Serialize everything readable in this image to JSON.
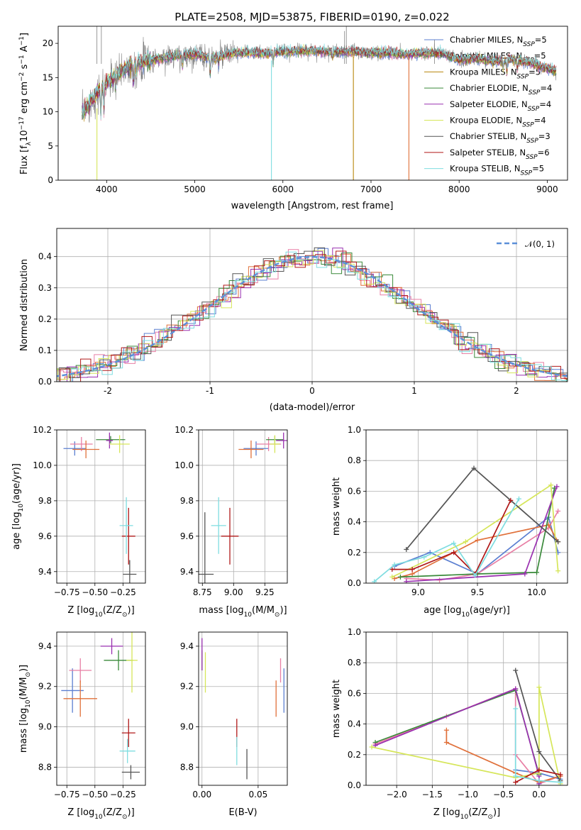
{
  "title": "PLATE=2508, MJD=53875, FIBERID=0190, z=0.022",
  "chart_data": [
    {
      "id": "spectrum",
      "type": "line",
      "xlabel": "wavelength [Angstrom, rest frame]",
      "ylabel": "Flux [f",
      "ylabel_sub": "λ",
      "ylabel_rest": "10",
      "ylabel_exp1": "−17",
      "ylabel_mid": " erg cm",
      "ylabel_exp2": "−2",
      "ylabel_mid2": " s",
      "ylabel_exp3": "−1",
      "ylabel_end": " A",
      "ylabel_exp4": "−1",
      "ylabel_close": "]",
      "xlim": [
        3450,
        9230
      ],
      "ylim": [
        0,
        22.5
      ],
      "xticks": [
        4000,
        5000,
        6000,
        7000,
        8000,
        9000
      ],
      "yticks": [
        0,
        5,
        10,
        15,
        20
      ],
      "grid": false,
      "legend_position": "top-right",
      "continuum": {
        "x": [
          3720,
          3800,
          3900,
          4000,
          4100,
          4200,
          4300,
          4400,
          4500,
          4700,
          5000,
          5200,
          5400,
          5600,
          5800,
          6000,
          6200,
          6400,
          6600,
          6800,
          7000,
          7200,
          7400,
          7600,
          7800,
          8000,
          8200,
          8400,
          8600,
          8800,
          9000,
          9100
        ],
        "y": [
          9.5,
          11.2,
          12.8,
          14.2,
          15.2,
          16.3,
          16.8,
          17.3,
          17.6,
          18.0,
          18.4,
          17.8,
          18.5,
          18.7,
          18.6,
          18.8,
          18.9,
          18.9,
          18.7,
          18.8,
          18.6,
          18.6,
          18.4,
          18.6,
          18.6,
          17.5,
          17.8,
          17.3,
          17.6,
          17.2,
          16.3,
          16.0
        ]
      },
      "absorption_features": [
        {
          "x": 3934,
          "depth": 4.5
        },
        {
          "x": 3969,
          "depth": 4.0
        },
        {
          "x": 4102,
          "depth": 2.0
        },
        {
          "x": 4304,
          "depth": 3.0
        },
        {
          "x": 4340,
          "depth": 2.0
        },
        {
          "x": 4861,
          "depth": 1.8
        },
        {
          "x": 5175,
          "depth": 2.5
        },
        {
          "x": 5270,
          "depth": 1.2
        },
        {
          "x": 5890,
          "depth": 2.0
        },
        {
          "x": 6563,
          "depth": 1.0
        },
        {
          "x": 8500,
          "depth": 1.5
        },
        {
          "x": 8542,
          "depth": 1.8
        },
        {
          "x": 8662,
          "depth": 1.5
        }
      ],
      "dropouts": [
        {
          "x": 3890,
          "y0": 10.5,
          "color": "#d6e65a"
        },
        {
          "x": 5870,
          "y0": 17.5,
          "color": "#7fdde0"
        },
        {
          "x": 6800,
          "y0": 18.0,
          "color": "#b8860b"
        },
        {
          "x": 7430,
          "y0": 18.0,
          "color": "#e0703a"
        }
      ],
      "spikes": [
        {
          "x": 3890,
          "y": 22.5
        },
        {
          "x": 3940,
          "y": 22.5
        },
        {
          "x": 6720,
          "y": 22.5
        },
        {
          "x": 6700,
          "y": 21.8
        },
        {
          "x": 7720,
          "y": 20.5
        }
      ],
      "series": [
        {
          "name": "Chabrier MILES, N",
          "sub": "SSP",
          "count": "=5",
          "color": "#5b7fd1"
        },
        {
          "name": "Salpeter MILES, N",
          "sub": "SSP",
          "count": "=5",
          "color": "#e87fa5"
        },
        {
          "name": "Kroupa MILES, N",
          "sub": "SSP",
          "count": "=5",
          "color": "#b8860b"
        },
        {
          "name": "Chabrier ELODIE, N",
          "sub": "SSP",
          "count": "=4",
          "color": "#3a8a3a"
        },
        {
          "name": "Salpeter ELODIE, N",
          "sub": "SSP",
          "count": "=4",
          "color": "#9a30b0"
        },
        {
          "name": "Kroupa ELODIE, N",
          "sub": "SSP",
          "count": "=4",
          "color": "#d6e65a"
        },
        {
          "name": "Chabrier STELIB, N",
          "sub": "SSP",
          "count": "=3",
          "color": "#555555"
        },
        {
          "name": "Salpeter STELIB, N",
          "sub": "SSP",
          "count": "=6",
          "color": "#b01818"
        },
        {
          "name": "Kroupa STELIB, N",
          "sub": "SSP",
          "count": "=5",
          "color": "#7fdde0"
        }
      ]
    },
    {
      "id": "residuals",
      "type": "histogram",
      "xlabel": "(data-model)/error",
      "ylabel": "Normed distribution",
      "xlim": [
        -2.5,
        2.5
      ],
      "ylim": [
        0,
        0.49
      ],
      "xticks": [
        -2,
        -1,
        0,
        1,
        2
      ],
      "yticks": [
        0.0,
        0.1,
        0.2,
        0.3,
        0.4
      ],
      "grid": true,
      "bin_width": 0.1,
      "reference": {
        "name": "𝒩(0, 1)",
        "color": "#5b8fd8",
        "style": "dashed"
      },
      "legend_position": "top-right",
      "colors": [
        "#5b7fd1",
        "#e87fa5",
        "#e0703a",
        "#3a8a3a",
        "#9a30b0",
        "#d6e65a",
        "#555555",
        "#b01818",
        "#7fdde0"
      ]
    },
    {
      "id": "age-vs-Z",
      "type": "scatter",
      "xlabel": "Z [log",
      "xlabel_sub": "10",
      "xlabel_rest": "(Z/Z",
      "xlabel_sub2": "⊙",
      "xlabel_close": ")]",
      "ylabel": "age  [log",
      "ylabel_sub": "10",
      "ylabel_rest": "(age/yr)]",
      "xlim": [
        -0.84,
        -0.05
      ],
      "ylim": [
        9.335,
        10.2
      ],
      "xticks": [
        -0.75,
        -0.5,
        -0.25
      ],
      "xtick_labels": [
        "−0.75",
        "−0.50",
        "−0.25"
      ],
      "yticks": [
        9.4,
        9.6,
        9.8,
        10.0,
        10.2
      ],
      "grid": true,
      "points": [
        {
          "x": -0.68,
          "y": 10.095,
          "xerr": 0.1,
          "yerr": 0.04,
          "color": "#5b7fd1"
        },
        {
          "x": -0.62,
          "y": 10.12,
          "xerr": 0.1,
          "yerr": 0.04,
          "color": "#e87fa5"
        },
        {
          "x": -0.58,
          "y": 10.09,
          "xerr": 0.12,
          "yerr": 0.05,
          "color": "#e0703a"
        },
        {
          "x": -0.36,
          "y": 10.145,
          "xerr": 0.13,
          "yerr": 0.02,
          "color": "#3a8a3a"
        },
        {
          "x": -0.37,
          "y": 10.14,
          "xerr": 0.03,
          "yerr": 0.045,
          "color": "#9a30b0"
        },
        {
          "x": -0.28,
          "y": 10.12,
          "xerr": 0.09,
          "yerr": 0.05,
          "color": "#d6e65a"
        },
        {
          "x": -0.19,
          "y": 9.385,
          "xerr": 0.06,
          "yerr": 0.08,
          "color": "#555555"
        },
        {
          "x": -0.2,
          "y": 9.6,
          "xerr": 0.06,
          "yerr": 0.16,
          "color": "#b01818"
        },
        {
          "x": -0.22,
          "y": 9.66,
          "xerr": 0.06,
          "yerr": 0.16,
          "color": "#7fdde0"
        }
      ]
    },
    {
      "id": "age-vs-mass",
      "type": "scatter",
      "xlabel": "mass [log",
      "xlabel_sub": "10",
      "xlabel_rest": "(M/M",
      "xlabel_sub2": "⊙",
      "xlabel_close": ")]",
      "xlim": [
        8.72,
        9.43
      ],
      "ylim": [
        9.335,
        10.2
      ],
      "xticks": [
        8.75,
        9.0,
        9.25
      ],
      "xtick_labels": [
        "8.75",
        "9.00",
        "9.25"
      ],
      "yticks": [
        9.4,
        9.6,
        9.8,
        10.0,
        10.2
      ],
      "grid": true,
      "points": [
        {
          "x": 9.18,
          "y": 10.095,
          "xerr": 0.1,
          "yerr": 0.04,
          "color": "#5b7fd1"
        },
        {
          "x": 9.28,
          "y": 10.12,
          "xerr": 0.1,
          "yerr": 0.04,
          "color": "#e87fa5"
        },
        {
          "x": 9.14,
          "y": 10.09,
          "xerr": 0.1,
          "yerr": 0.05,
          "color": "#e0703a"
        },
        {
          "x": 9.33,
          "y": 10.145,
          "xerr": 0.07,
          "yerr": 0.02,
          "color": "#3a8a3a"
        },
        {
          "x": 9.4,
          "y": 10.14,
          "xerr": 0.06,
          "yerr": 0.045,
          "color": "#9a30b0"
        },
        {
          "x": 9.33,
          "y": 10.12,
          "xerr": 0.04,
          "yerr": 0.05,
          "color": "#d6e65a"
        },
        {
          "x": 8.77,
          "y": 9.385,
          "xerr": 0.07,
          "yerr": 0.35,
          "color": "#555555"
        },
        {
          "x": 8.97,
          "y": 9.6,
          "xerr": 0.07,
          "yerr": 0.16,
          "color": "#b01818"
        },
        {
          "x": 8.88,
          "y": 9.66,
          "xerr": 0.06,
          "yerr": 0.16,
          "color": "#7fdde0"
        }
      ]
    },
    {
      "id": "massweight-vs-age",
      "type": "line",
      "xlabel": "age  [log",
      "xlabel_sub": "10",
      "xlabel_rest": "(age/yr)]",
      "ylabel": "mass weight",
      "xlim": [
        8.56,
        10.26
      ],
      "ylim": [
        0,
        1
      ],
      "xticks": [
        9.0,
        9.5,
        10.0
      ],
      "xtick_labels": [
        "9.0",
        "9.5",
        "10.0"
      ],
      "yticks": [
        0.0,
        0.2,
        0.4,
        0.6,
        0.8,
        1.0
      ],
      "grid": true,
      "series": [
        {
          "color": "#5b7fd1",
          "x": [
            8.8,
            9.1,
            9.5,
            10.1,
            10.18
          ],
          "y": [
            0.11,
            0.2,
            0.06,
            0.43,
            0.2
          ]
        },
        {
          "color": "#e87fa5",
          "x": [
            8.9,
            9.18,
            9.5,
            10.1,
            10.18
          ],
          "y": [
            0.03,
            0.02,
            0.06,
            0.36,
            0.47
          ]
        },
        {
          "color": "#e0703a",
          "x": [
            8.8,
            8.95,
            9.5,
            10.1,
            10.18
          ],
          "y": [
            0.03,
            0.06,
            0.28,
            0.38,
            0.27
          ]
        },
        {
          "color": "#3a8a3a",
          "x": [
            8.85,
            9.5,
            10.0,
            10.15
          ],
          "y": [
            0.04,
            0.06,
            0.07,
            0.62
          ]
        },
        {
          "color": "#9a30b0",
          "x": [
            8.9,
            9.9,
            10.17
          ],
          "y": [
            0.01,
            0.06,
            0.63
          ]
        },
        {
          "color": "#d6e65a",
          "x": [
            8.78,
            9.4,
            10.12,
            10.18
          ],
          "y": [
            0.04,
            0.27,
            0.64,
            0.08
          ]
        },
        {
          "color": "#555555",
          "x": [
            8.9,
            9.47,
            10.18
          ],
          "y": [
            0.22,
            0.75,
            0.27
          ]
        },
        {
          "color": "#b01818",
          "x": [
            8.78,
            8.95,
            9.3,
            9.48,
            9.78
          ],
          "y": [
            0.09,
            0.09,
            0.2,
            0.06,
            0.54
          ]
        },
        {
          "color": "#7fdde0",
          "x": [
            8.63,
            8.8,
            9.05,
            9.3,
            9.48,
            9.85
          ],
          "y": [
            0.01,
            0.12,
            0.17,
            0.26,
            0.05,
            0.55
          ]
        }
      ]
    },
    {
      "id": "mass-vs-Z",
      "type": "scatter",
      "xlabel": "Z [log",
      "xlabel_sub": "10",
      "xlabel_rest": "(Z/Z",
      "xlabel_sub2": "⊙",
      "xlabel_close": ")]",
      "ylabel": "mass [log",
      "ylabel_sub": "10",
      "ylabel_rest": "(M/M",
      "ylabel_sub2": "⊙",
      "ylabel_close": ")]",
      "xlim": [
        -0.84,
        -0.05
      ],
      "ylim": [
        8.71,
        9.47
      ],
      "xticks": [
        -0.75,
        -0.5,
        -0.25
      ],
      "xtick_labels": [
        "−0.75",
        "−0.50",
        "−0.25"
      ],
      "yticks": [
        8.8,
        9.0,
        9.2,
        9.4
      ],
      "grid": true,
      "points": [
        {
          "x": -0.7,
          "y": 9.18,
          "xerr": 0.1,
          "yerr": 0.11,
          "color": "#5b7fd1"
        },
        {
          "x": -0.63,
          "y": 9.28,
          "xerr": 0.1,
          "yerr": 0.06,
          "color": "#e87fa5"
        },
        {
          "x": -0.63,
          "y": 9.14,
          "xerr": 0.15,
          "yerr": 0.09,
          "color": "#e0703a"
        },
        {
          "x": -0.29,
          "y": 9.33,
          "xerr": 0.13,
          "yerr": 0.05,
          "color": "#3a8a3a"
        },
        {
          "x": -0.35,
          "y": 9.4,
          "xerr": 0.1,
          "yerr": 0.04,
          "color": "#9a30b0"
        },
        {
          "x": -0.17,
          "y": 9.33,
          "xerr": 0.05,
          "yerr": 0.16,
          "color": "#d6e65a"
        },
        {
          "x": -0.18,
          "y": 8.775,
          "xerr": 0.08,
          "yerr": 0.035,
          "color": "#555555"
        },
        {
          "x": -0.2,
          "y": 8.97,
          "xerr": 0.06,
          "yerr": 0.07,
          "color": "#b01818"
        },
        {
          "x": -0.21,
          "y": 8.88,
          "xerr": 0.07,
          "yerr": 0.06,
          "color": "#7fdde0"
        }
      ]
    },
    {
      "id": "mass-vs-EBV",
      "type": "scatter",
      "xlabel": "E(B-V)",
      "xlim": [
        -0.003,
        0.076
      ],
      "ylim": [
        8.71,
        9.47
      ],
      "xticks": [
        0.0,
        0.05
      ],
      "xtick_labels": [
        "0.00",
        "0.05"
      ],
      "yticks": [
        8.8,
        9.0,
        9.2,
        9.4
      ],
      "grid": true,
      "points": [
        {
          "x": 0.073,
          "y": 9.18,
          "xerr": 0.0,
          "yerr": 0.11,
          "color": "#5b7fd1"
        },
        {
          "x": 0.07,
          "y": 9.28,
          "xerr": 0.0,
          "yerr": 0.06,
          "color": "#e87fa5"
        },
        {
          "x": 0.066,
          "y": 9.14,
          "xerr": 0.0,
          "yerr": 0.09,
          "color": "#e0703a"
        },
        {
          "x": 0.0,
          "y": 9.33,
          "xerr": 0.0,
          "yerr": 0.05,
          "color": "#3a8a3a"
        },
        {
          "x": 0.0,
          "y": 9.36,
          "xerr": 0.0,
          "yerr": 0.08,
          "color": "#9a30b0"
        },
        {
          "x": 0.003,
          "y": 9.27,
          "xerr": 0.0,
          "yerr": 0.1,
          "color": "#d6e65a"
        },
        {
          "x": 0.04,
          "y": 8.815,
          "xerr": 0.0,
          "yerr": 0.075,
          "color": "#555555"
        },
        {
          "x": 0.031,
          "y": 8.97,
          "xerr": 0.0,
          "yerr": 0.07,
          "color": "#b01818"
        },
        {
          "x": 0.031,
          "y": 8.88,
          "xerr": 0.0,
          "yerr": 0.07,
          "color": "#7fdde0"
        }
      ]
    },
    {
      "id": "massweight-vs-Z",
      "type": "line",
      "xlabel": "Z [log",
      "xlabel_sub": "10",
      "xlabel_rest": "(Z/Z",
      "xlabel_sub2": "⊙",
      "xlabel_close": ")]",
      "ylabel": "mass weight",
      "xlim": [
        -2.43,
        0.4
      ],
      "ylim": [
        0,
        1
      ],
      "xticks": [
        -2.0,
        -1.5,
        -1.0,
        -0.5,
        0.0
      ],
      "xtick_labels": [
        "−2.0",
        "−1.5",
        "−1.0",
        "−0.5",
        "0.0"
      ],
      "yticks": [
        0.0,
        0.2,
        0.4,
        0.6,
        0.8,
        1.0
      ],
      "grid": true,
      "series": [
        {
          "color": "#5b7fd1",
          "x": [
            -0.33,
            0.0,
            0.3
          ],
          "y": [
            0.1,
            0.08,
            0.04
          ]
        },
        {
          "color": "#e87fa5",
          "x": [
            -2.3,
            -1.3,
            -0.33,
            -0.33,
            0.0,
            0.3
          ],
          "y": [
            0.27,
            0.45,
            0.63,
            0.2,
            0.01,
            0.06
          ]
        },
        {
          "color": "#e0703a",
          "x": [
            -1.3,
            -1.3,
            -0.33,
            0.0,
            0.3
          ],
          "y": [
            0.36,
            0.28,
            0.08,
            0.02,
            0.06
          ]
        },
        {
          "color": "#3a8a3a",
          "x": [
            -2.3,
            -0.33,
            0.0
          ],
          "y": [
            0.28,
            0.62,
            0.07
          ]
        },
        {
          "color": "#9a30b0",
          "x": [
            -2.3,
            -0.33,
            0.0,
            0.0
          ],
          "y": [
            0.26,
            0.63,
            0.06,
            0.01
          ]
        },
        {
          "color": "#d6e65a",
          "x": [
            -2.35,
            -0.33,
            0.0,
            0.0,
            0.3
          ],
          "y": [
            0.25,
            0.05,
            0.08,
            0.64,
            0.01
          ]
        },
        {
          "color": "#555555",
          "x": [
            -0.33,
            0.0,
            0.3
          ],
          "y": [
            0.75,
            0.22,
            0.03
          ]
        },
        {
          "color": "#b01818",
          "x": [
            -0.33,
            0.0,
            0.3
          ],
          "y": [
            0.02,
            0.1,
            0.07
          ]
        },
        {
          "color": "#7fdde0",
          "x": [
            -0.33,
            -0.33,
            0.0,
            0.3
          ],
          "y": [
            0.5,
            0.06,
            0.03,
            0.02
          ]
        }
      ]
    }
  ]
}
